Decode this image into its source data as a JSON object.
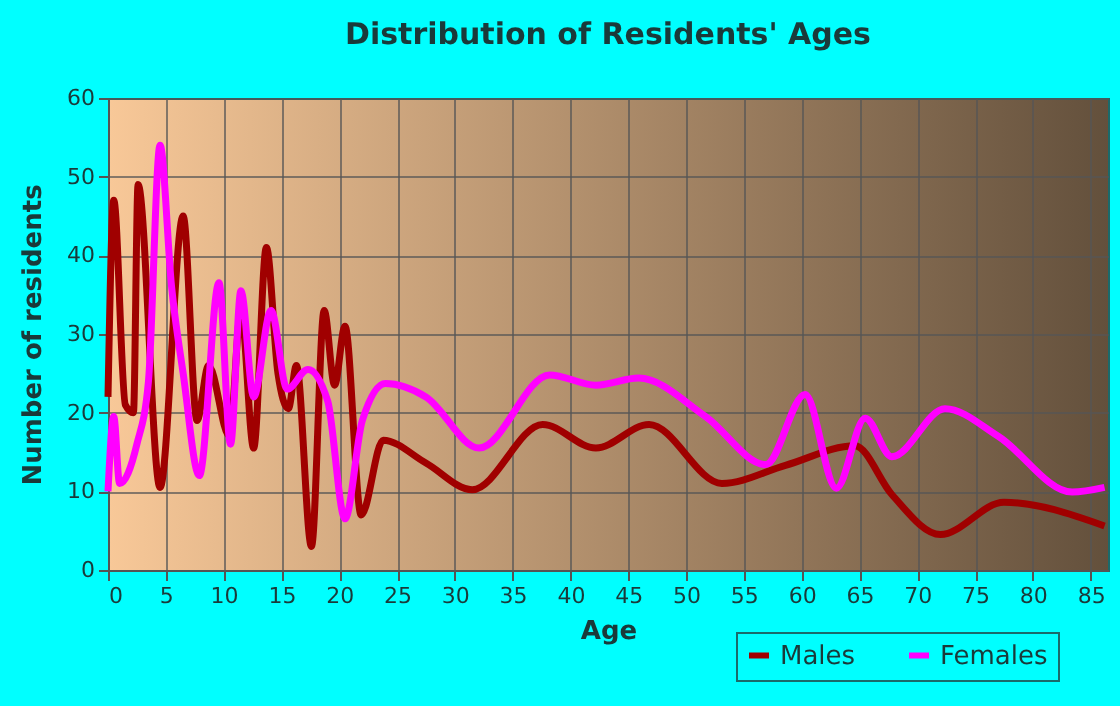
{
  "chart_data": {
    "type": "line",
    "title": "Distribution of Residents' Ages",
    "xlabel": "Age",
    "ylabel": "Number of residents",
    "xlim": [
      0,
      86.5
    ],
    "xticks": [
      0,
      5,
      10,
      15,
      20,
      25,
      30,
      35,
      40,
      45,
      50,
      55,
      60,
      65,
      70,
      75,
      80,
      85
    ],
    "ylim": [
      0,
      60
    ],
    "yticks": [
      0,
      10,
      20,
      30,
      40,
      50,
      60
    ],
    "grid": true,
    "legend": "bottom",
    "marker": "none",
    "line_style": "solid",
    "series": [
      {
        "name": "Males",
        "color": "#a00000",
        "x": [
          0,
          0.5,
          1.5,
          2.2,
          2.6,
          4.5,
          6.5,
          7.7,
          8.7,
          10.5,
          11.5,
          12.6,
          13.7,
          14.7,
          15.6,
          16.3,
          17.6,
          18.7,
          19.6,
          20.5,
          21.9,
          23.8,
          27.5,
          31.5,
          37.6,
          42.2,
          46.8,
          53.1,
          58.6,
          64.6,
          67.8,
          72,
          77.5,
          86.2
        ],
        "values": [
          22,
          47,
          21,
          20,
          49,
          10.5,
          45,
          19,
          26,
          17,
          33,
          15.5,
          41,
          25,
          20.5,
          26,
          3,
          33,
          23.5,
          31,
          7,
          16.5,
          13.6,
          10.2,
          18.5,
          15.5,
          18.5,
          11,
          13.3,
          15.8,
          9.6,
          4.5,
          8.6,
          5.6
        ]
      },
      {
        "name": "Females",
        "color": "#ff00ff",
        "x": [
          0,
          0.5,
          1,
          2.5,
          3.5,
          4.5,
          5.5,
          6.5,
          7.9,
          9.6,
          10.6,
          11.5,
          12.6,
          14.1,
          15.5,
          17.3,
          19,
          20.5,
          22,
          24,
          27.5,
          32.1,
          38.2,
          42.2,
          45.9,
          51.7,
          56.9,
          60.3,
          63,
          65.5,
          67.8,
          72.4,
          77,
          83.4,
          86.2
        ],
        "values": [
          10,
          19.5,
          11,
          16,
          24,
          54,
          36,
          25,
          12,
          36.5,
          16,
          35.5,
          22,
          33,
          23,
          25.5,
          21.5,
          6.5,
          19,
          23.7,
          22,
          15.5,
          24.8,
          23.5,
          24.4,
          19.5,
          13.4,
          22.3,
          10.4,
          19.3,
          14.4,
          20.5,
          17,
          9.9,
          10.5
        ]
      }
    ]
  }
}
